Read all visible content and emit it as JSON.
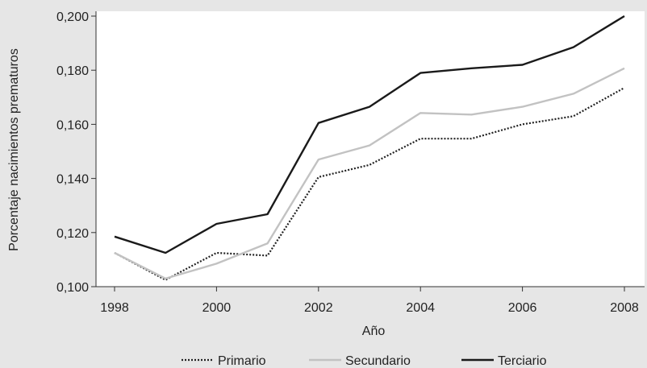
{
  "chart_data": {
    "type": "line",
    "title": "",
    "xlabel": "Año",
    "ylabel": "Porcentaje nacimientos prematuros",
    "x": [
      1998,
      1999,
      2000,
      2001,
      2002,
      2003,
      2004,
      2005,
      2006,
      2007,
      2008
    ],
    "xlim": [
      1998,
      2008
    ],
    "ylim": [
      0.1,
      0.2
    ],
    "x_ticks": [
      "1998",
      "2000",
      "2002",
      "2004",
      "2006",
      "2008"
    ],
    "y_ticks": [
      "0,100",
      "0,120",
      "0,140",
      "0,160",
      "0,180",
      "0,200"
    ],
    "grid": false,
    "legend_position": "bottom",
    "series": [
      {
        "name": "Primario",
        "color": "#222222",
        "style": "dotted",
        "values": [
          0.1125,
          0.1025,
          0.1125,
          0.1115,
          0.1405,
          0.145,
          0.1547,
          0.1547,
          0.16,
          0.163,
          0.1735
        ]
      },
      {
        "name": "Secundario",
        "color": "#c2c2c2",
        "style": "solid",
        "values": [
          0.1125,
          0.103,
          0.1085,
          0.116,
          0.147,
          0.1522,
          0.1642,
          0.1636,
          0.1665,
          0.1713,
          0.1807
        ]
      },
      {
        "name": "Terciario",
        "color": "#1a1a1a",
        "style": "solid",
        "values": [
          0.1185,
          0.1125,
          0.1232,
          0.1268,
          0.1605,
          0.1665,
          0.179,
          0.1807,
          0.182,
          0.1885,
          0.2
        ]
      }
    ]
  }
}
